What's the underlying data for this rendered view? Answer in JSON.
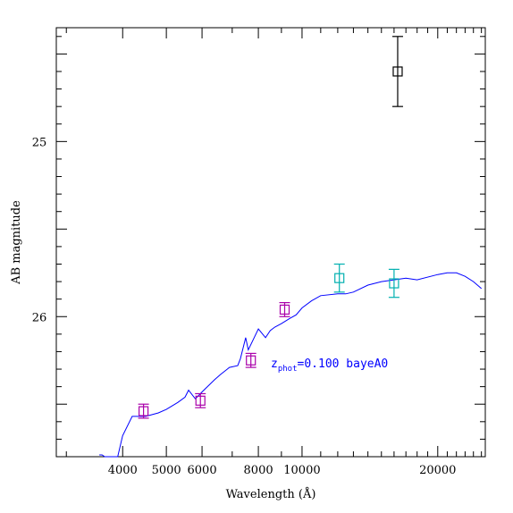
{
  "chart_data": {
    "type": "scatter",
    "title": "",
    "xlabel": "Wavelength (Å)",
    "ylabel": "AB magnitude",
    "x_scale": "log",
    "xlim": [
      2850,
      25500
    ],
    "ylim": [
      26.8,
      24.35
    ],
    "x_ticks": [
      {
        "value": 4000,
        "label": "4000"
      },
      {
        "value": 5000,
        "label": "5000"
      },
      {
        "value": 6000,
        "label": "6000"
      },
      {
        "value": 8000,
        "label": "8000"
      },
      {
        "value": 10000,
        "label": "10000"
      },
      {
        "value": 20000,
        "label": "20000"
      }
    ],
    "y_ticks": [
      {
        "value": 25,
        "label": "25"
      },
      {
        "value": 26,
        "label": "26"
      }
    ],
    "annotation": {
      "prefix": "z",
      "subscript": "phot",
      "suffix": "=0.100 bayeA0",
      "color": "#0000ff"
    },
    "model_curve": {
      "color": "#0000ff",
      "x": [
        3550,
        3600,
        3650,
        3700,
        3800,
        3900,
        4000,
        4200,
        4500,
        4800,
        5000,
        5300,
        5500,
        5600,
        5800,
        6000,
        6400,
        6600,
        6900,
        7200,
        7300,
        7500,
        7600,
        7800,
        8000,
        8300,
        8500,
        8700,
        9000,
        9400,
        9700,
        10000,
        10500,
        11000,
        12000,
        12500,
        13000,
        14000,
        15000,
        16000,
        17000,
        18000,
        20000,
        21000,
        22000,
        23000,
        24000,
        25000
      ],
      "y": [
        26.79,
        26.79,
        26.8,
        26.81,
        26.82,
        26.8,
        26.68,
        26.57,
        26.57,
        26.55,
        26.53,
        26.49,
        26.46,
        26.42,
        26.47,
        26.43,
        26.36,
        26.33,
        26.29,
        26.28,
        26.24,
        26.12,
        26.19,
        26.13,
        26.07,
        26.12,
        26.08,
        26.06,
        26.04,
        26.01,
        25.99,
        25.95,
        25.91,
        25.88,
        25.87,
        25.87,
        25.86,
        25.82,
        25.8,
        25.79,
        25.78,
        25.79,
        25.76,
        25.75,
        25.75,
        25.77,
        25.8,
        25.84
      ]
    },
    "series": [
      {
        "color": "#aa00aa",
        "points": [
          {
            "x": 4450,
            "y": 26.54,
            "err": 0.04
          },
          {
            "x": 5950,
            "y": 26.48,
            "err": 0.04
          },
          {
            "x": 7700,
            "y": 26.25,
            "err": 0.04
          },
          {
            "x": 9150,
            "y": 25.96,
            "err": 0.04
          }
        ]
      },
      {
        "color": "#00b0b0",
        "points": [
          {
            "x": 12100,
            "y": 25.78,
            "err": 0.08
          },
          {
            "x": 16000,
            "y": 25.81,
            "err": 0.08
          }
        ]
      },
      {
        "color": "#000000",
        "points": [
          {
            "x": 16300,
            "y": 24.6,
            "err": 0.2
          }
        ]
      }
    ]
  }
}
